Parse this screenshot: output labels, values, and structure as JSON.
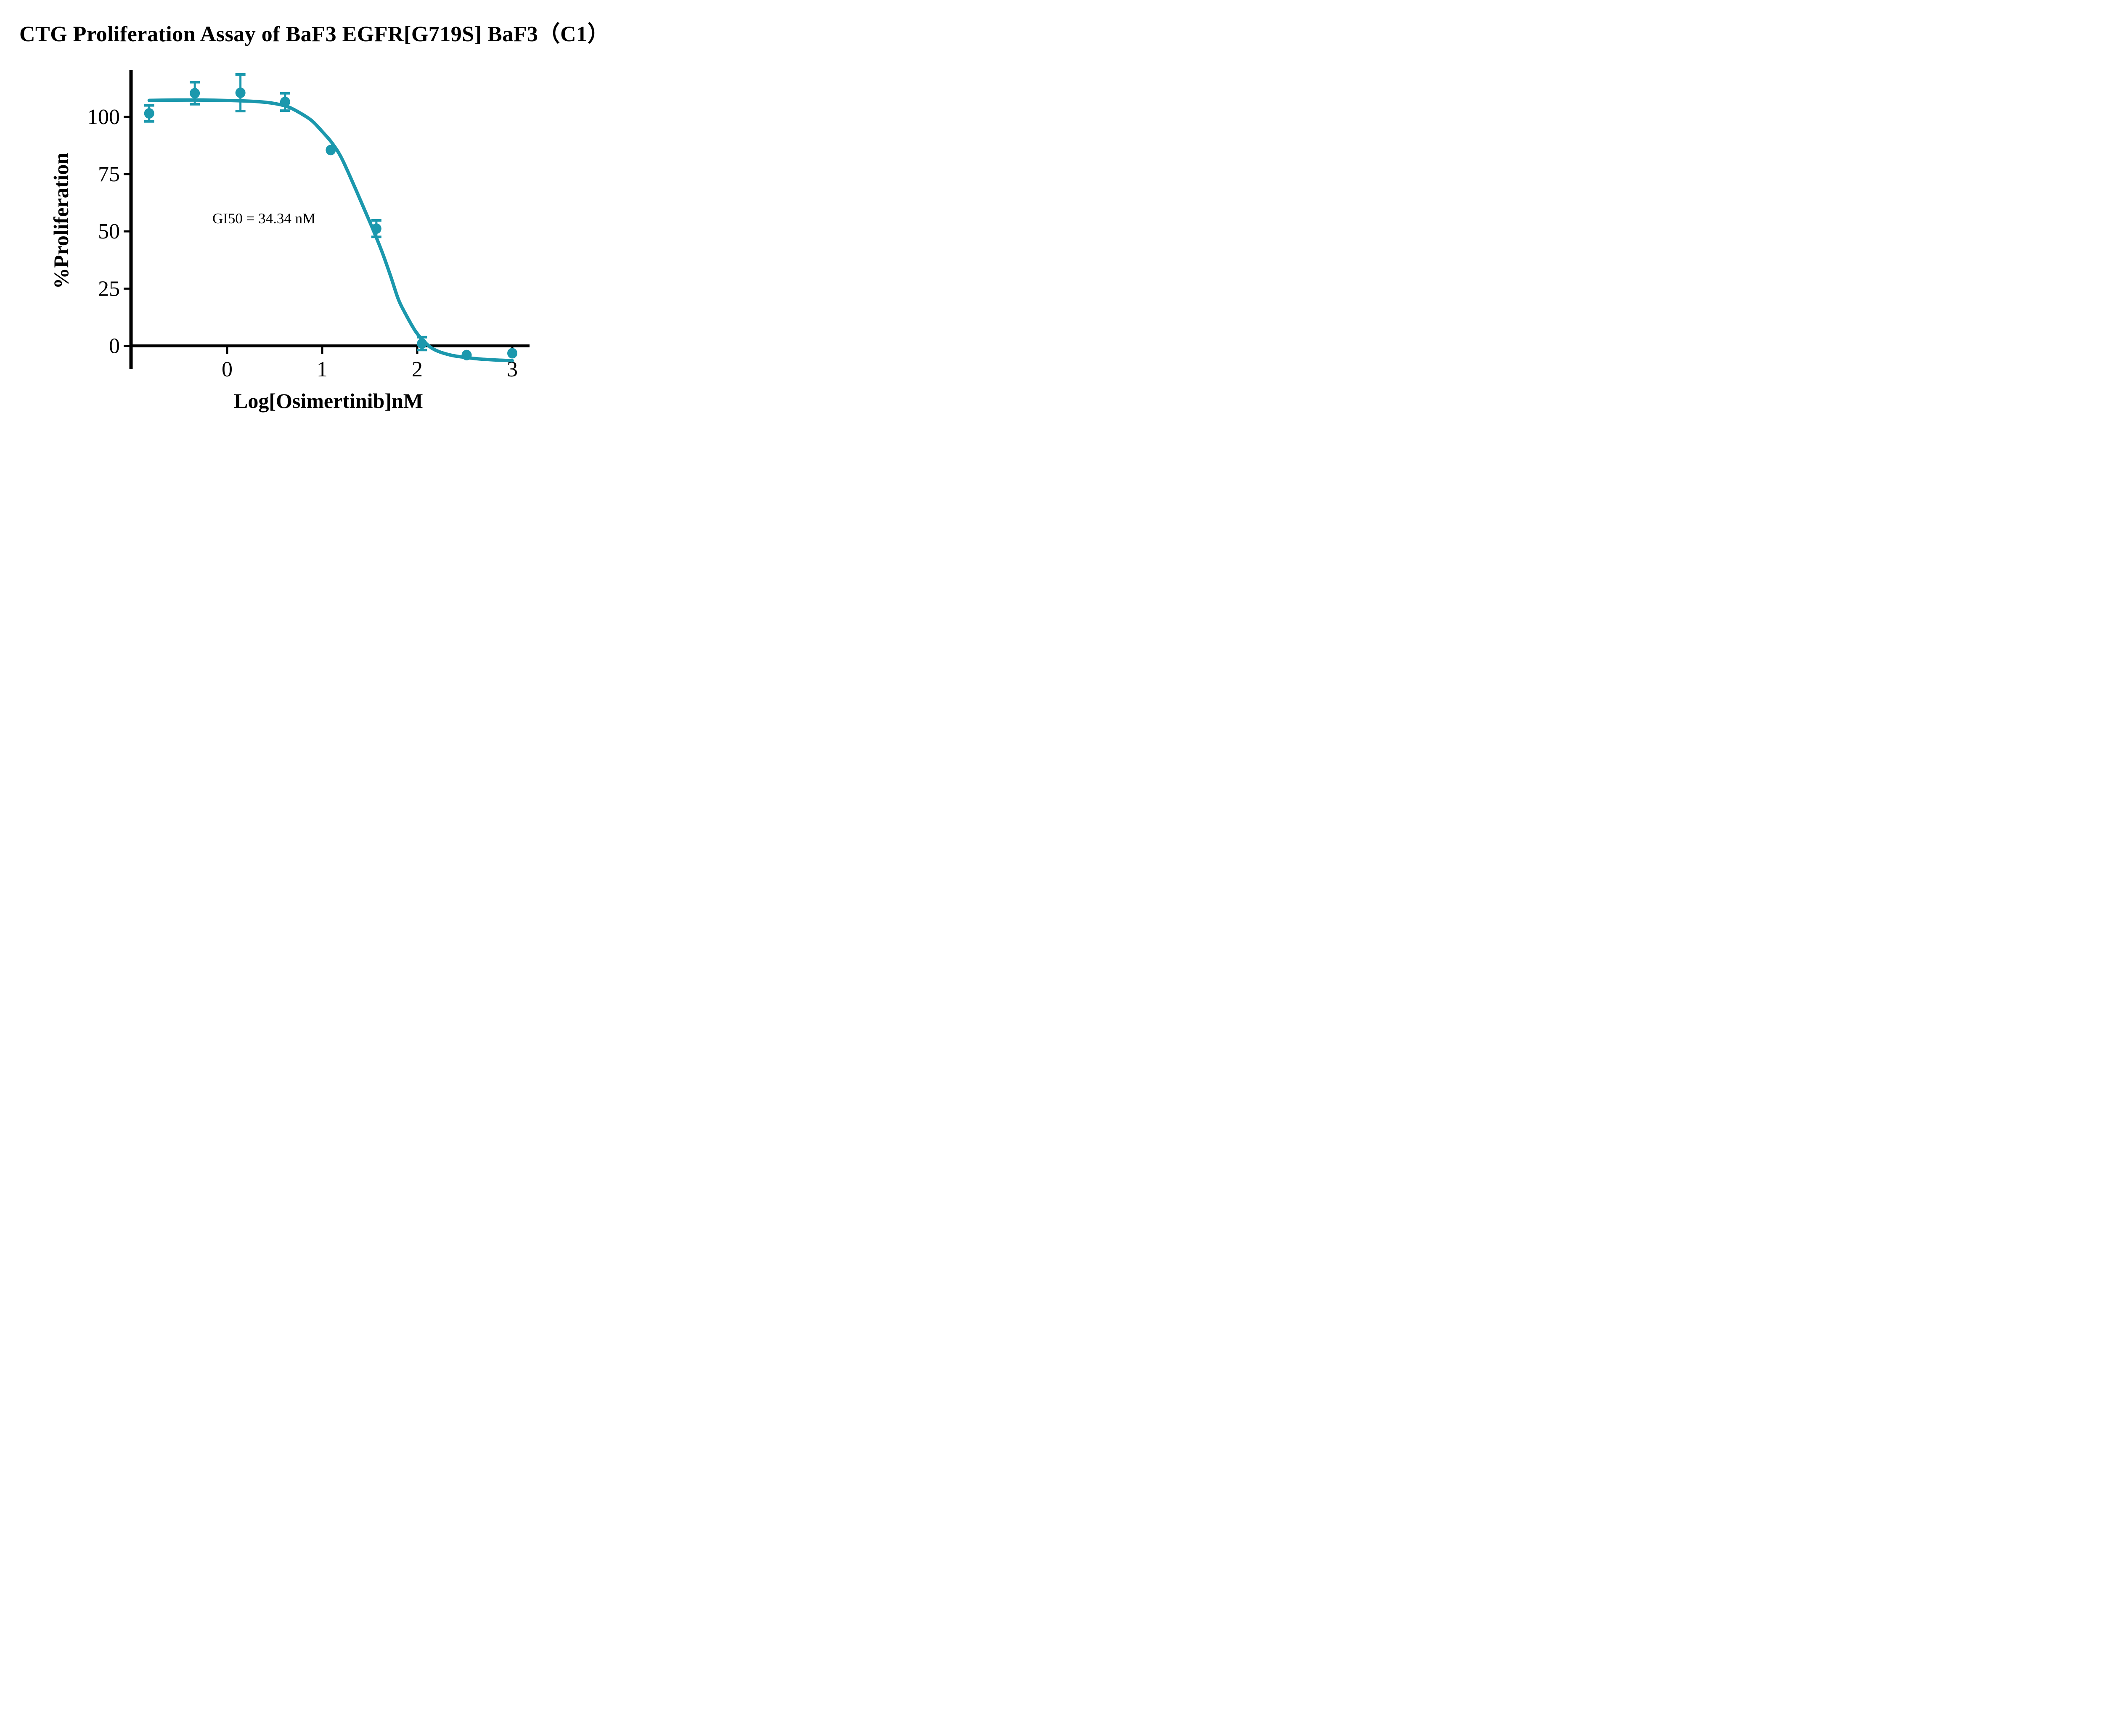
{
  "chart_data": {
    "type": "scatter",
    "title": "CTG Proliferation Assay of BaF3 EGFR[G719S] BaF3（C1）",
    "xlabel": "Log[Osimertinib]nM",
    "ylabel": "%Proliferation",
    "annotation": "GI50 = 34.34 nM",
    "gi50_nM": 34.34,
    "legend": "none",
    "grid": false,
    "xlim": [
      -1.02,
      3.2
    ],
    "ylim": [
      -10.5,
      120.5
    ],
    "x_ticks": [
      {
        "value": 0,
        "label": "0"
      },
      {
        "value": 1,
        "label": "1"
      },
      {
        "value": 2,
        "label": "2"
      },
      {
        "value": 3,
        "label": "3"
      }
    ],
    "y_ticks": [
      {
        "value": 100,
        "label": "100"
      },
      {
        "value": 75,
        "label": "75"
      },
      {
        "value": 50,
        "label": "50"
      },
      {
        "value": 25,
        "label": "25"
      },
      {
        "value": 0,
        "label": "0"
      }
    ],
    "colors": {
      "series": "#1b98ad",
      "axis": "#000000",
      "text": "#000000",
      "background": "#ffffff"
    },
    "series": [
      {
        "marker": "circle",
        "points": [
          {
            "x_log": -0.82,
            "y_pct": 101.5,
            "err": 3.5
          },
          {
            "x_log": -0.34,
            "y_pct": 110.3,
            "err": 4.8
          },
          {
            "x_log": 0.14,
            "y_pct": 110.5,
            "err": 8.0
          },
          {
            "x_log": 0.61,
            "y_pct": 106.5,
            "err": 3.8
          },
          {
            "x_log": 1.09,
            "y_pct": 85.5,
            "err": 0
          },
          {
            "x_log": 1.57,
            "y_pct": 51.2,
            "err": 3.6
          },
          {
            "x_log": 2.05,
            "y_pct": 1.0,
            "err": 2.8
          },
          {
            "x_log": 2.52,
            "y_pct": -4.0,
            "err": 0
          },
          {
            "x_log": 3.0,
            "y_pct": -3.2,
            "err": 0
          }
        ]
      }
    ],
    "fit_curve": {
      "samples": [
        [
          -0.82,
          107.2
        ],
        [
          -0.55,
          107.3
        ],
        [
          -0.25,
          107.3
        ],
        [
          0.05,
          107.1
        ],
        [
          0.3,
          106.7
        ],
        [
          0.5,
          105.8
        ],
        [
          0.65,
          104.2
        ],
        [
          0.8,
          100.9
        ],
        [
          0.9,
          98.0
        ],
        [
          1.0,
          93.6
        ],
        [
          1.1,
          88.8
        ],
        [
          1.2,
          82.3
        ],
        [
          1.33,
          70.5
        ],
        [
          1.45,
          59.0
        ],
        [
          1.54,
          50.3
        ],
        [
          1.63,
          41.0
        ],
        [
          1.72,
          30.5
        ],
        [
          1.8,
          20.5
        ],
        [
          1.87,
          14.5
        ],
        [
          1.985,
          6.2
        ],
        [
          2.1,
          0.8
        ],
        [
          2.2,
          -2.0
        ],
        [
          2.35,
          -4.0
        ],
        [
          2.5,
          -5.0
        ],
        [
          2.65,
          -5.7
        ],
        [
          2.8,
          -6.1
        ],
        [
          3.0,
          -6.45
        ]
      ]
    }
  }
}
